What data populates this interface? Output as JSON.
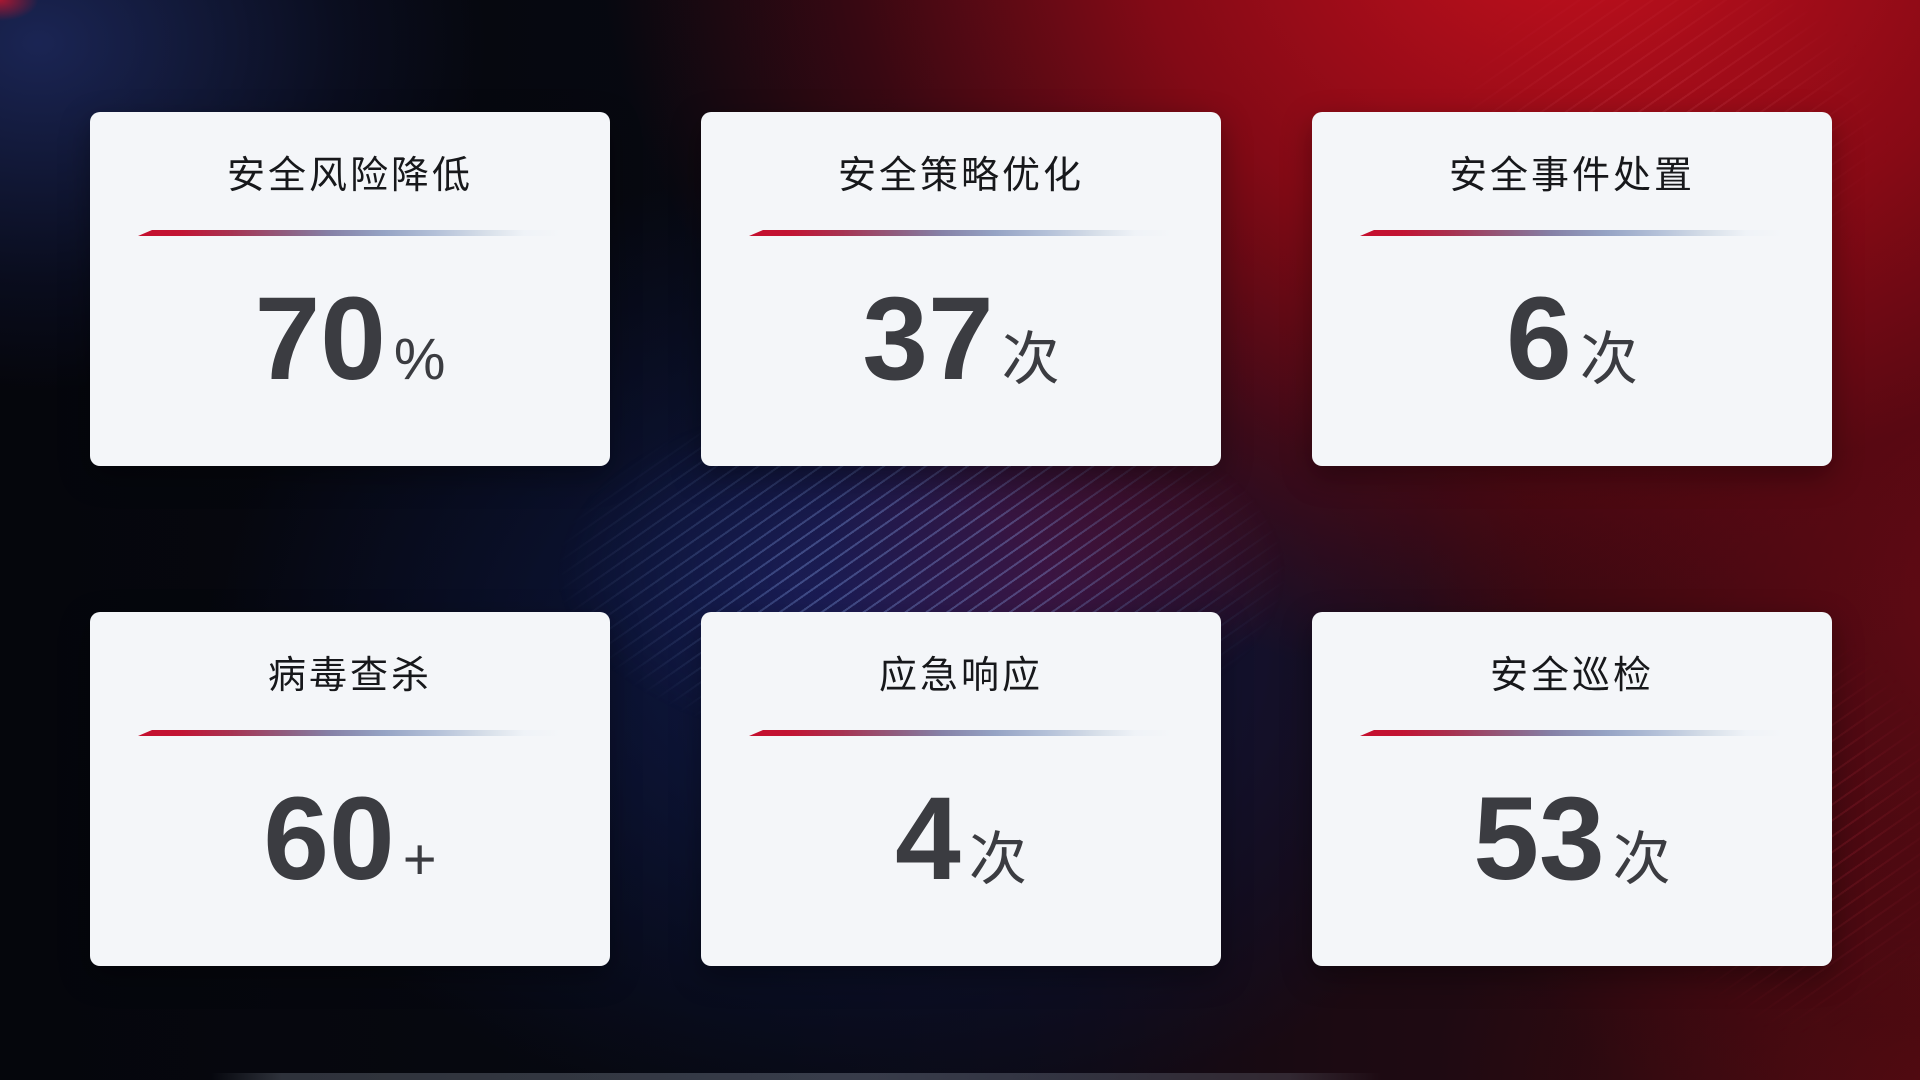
{
  "cards": [
    {
      "title": "安全风险降低",
      "value": "70",
      "unit": "%"
    },
    {
      "title": "安全策略优化",
      "value": "37",
      "unit": "次"
    },
    {
      "title": "安全事件处置",
      "value": "6",
      "unit": "次"
    },
    {
      "title": "病毒查杀",
      "value": "60",
      "unit": "+"
    },
    {
      "title": "应急响应",
      "value": "4",
      "unit": "次"
    },
    {
      "title": "安全巡检",
      "value": "53",
      "unit": "次"
    }
  ],
  "theme": {
    "card_background": "#f4f6f9",
    "title_color": "#17181b",
    "value_color": "#3b3c41",
    "divider_gradient_start": "#c50f2e",
    "divider_gradient_end": "#dfe5ee",
    "background_red": "#9c0c16",
    "background_navy": "#101838"
  }
}
